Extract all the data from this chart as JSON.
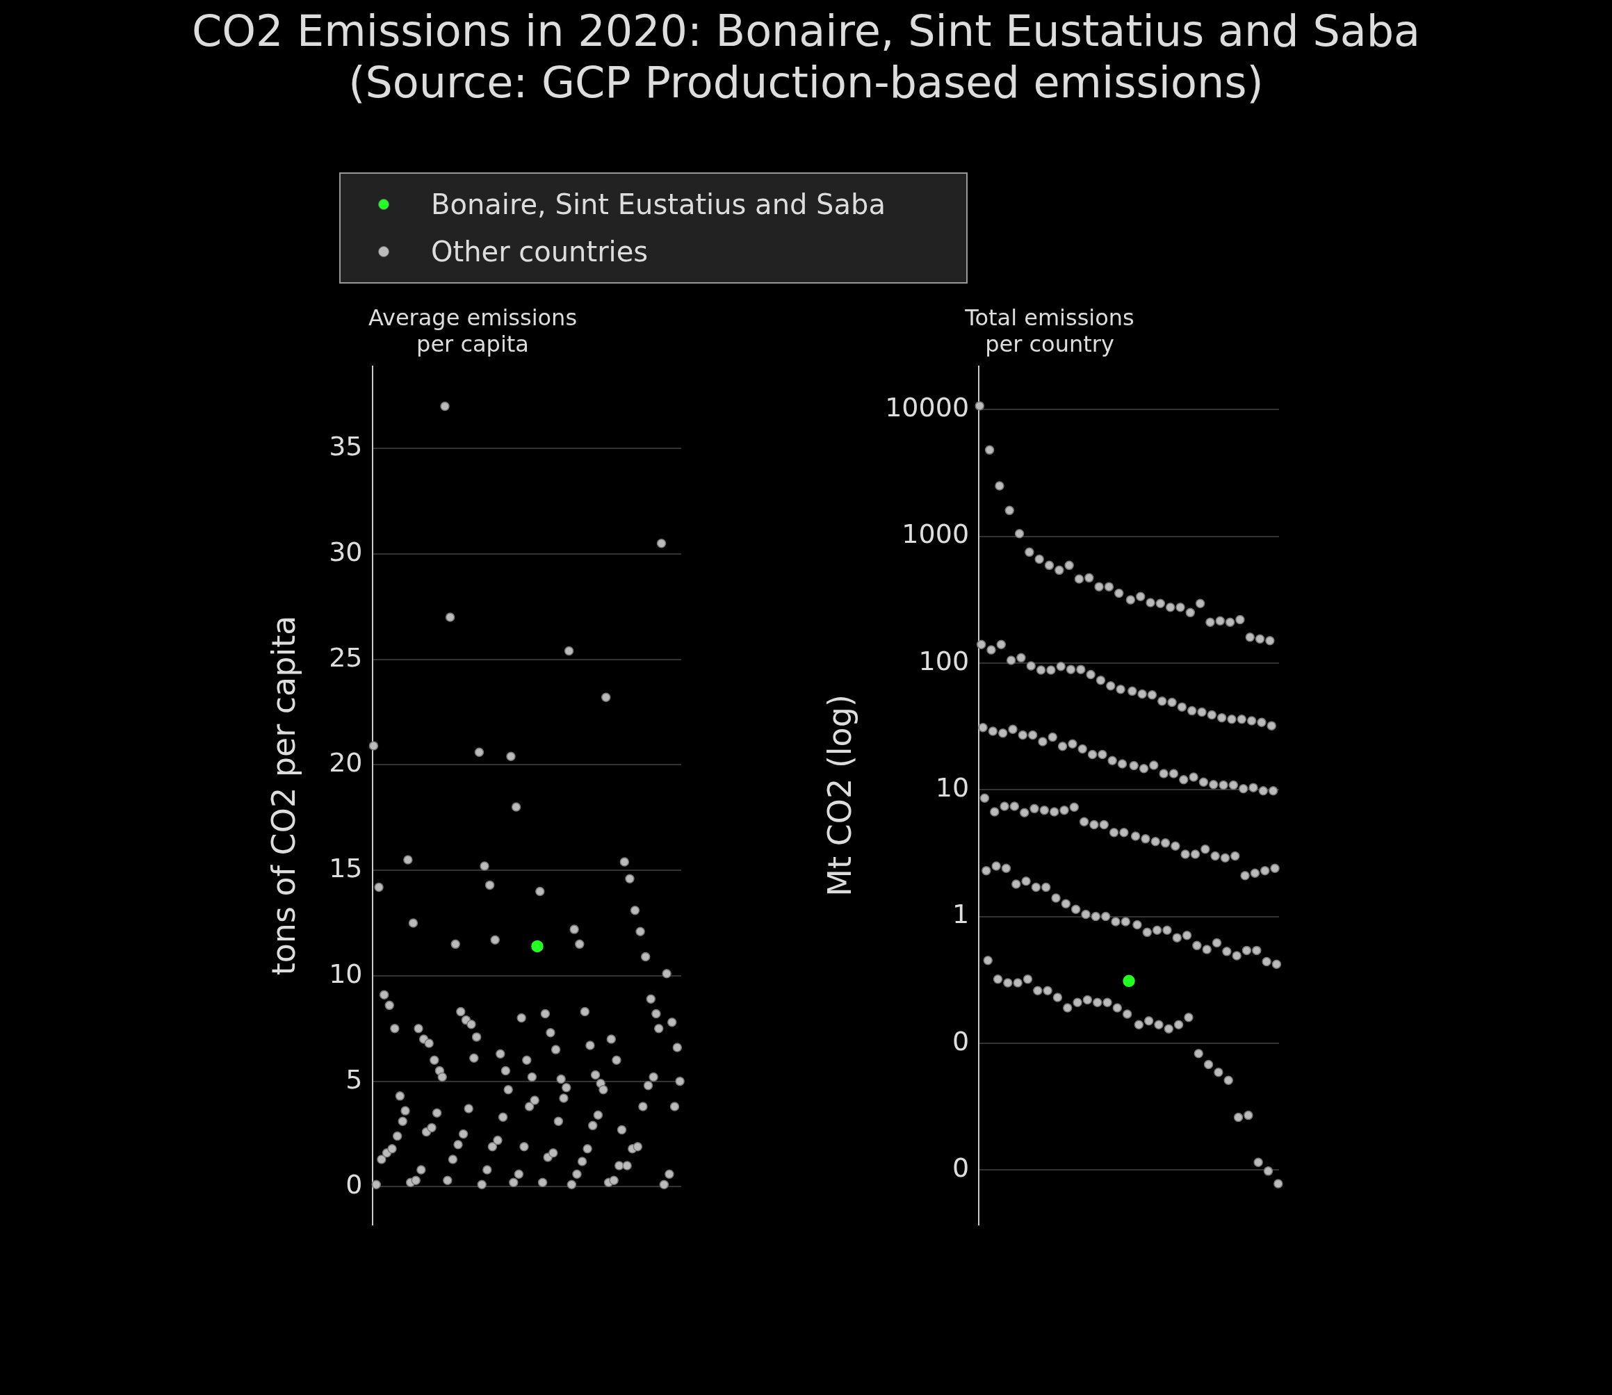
{
  "chart_data": [
    {
      "type": "scatter",
      "title": "CO2 Emissions in 2020: Bonaire, Sint Eustatius and Saba\n(Source: GCP Production-based emissions)",
      "subtitle": "Average emissions\nper capita",
      "ylabel": "tons of CO2 per capita",
      "legend": "top",
      "grid": "y",
      "tick_labels": "y",
      "marker": "circle",
      "ylim": [
        -1.8,
        38.9
      ],
      "yticks": [
        0,
        5,
        10,
        15,
        20,
        25,
        30,
        35
      ],
      "categories": [
        null,
        null,
        null,
        null,
        null,
        null,
        null,
        null,
        null,
        null,
        null,
        null,
        null,
        null,
        null,
        null,
        null,
        null,
        null,
        null,
        null,
        null,
        null,
        null,
        null,
        null,
        null,
        null,
        null,
        null,
        null,
        null,
        null,
        null,
        null,
        null,
        null,
        null,
        null,
        null,
        null,
        null,
        null,
        null,
        null,
        null,
        null,
        null,
        null,
        null,
        null,
        null,
        null,
        null,
        null,
        null,
        null,
        null,
        null,
        null,
        null,
        null,
        null,
        null,
        null,
        null,
        null,
        null,
        null,
        null,
        null,
        null,
        null,
        null,
        null,
        null,
        null,
        null,
        null,
        null,
        null,
        null,
        null,
        null,
        null,
        null,
        null,
        null,
        null,
        null,
        null,
        null,
        null,
        null,
        null,
        null,
        null,
        null,
        null,
        null,
        null,
        null,
        null,
        null,
        null,
        null,
        null,
        null,
        null,
        null,
        null,
        null,
        null,
        null,
        null,
        null,
        null
      ],
      "series": [
        {
          "name": "Bonaire, Sint Eustatius and Saba",
          "color": "#22ff22",
          "values": [
            null,
            null,
            null,
            null,
            null,
            null,
            null,
            null,
            null,
            null,
            null,
            null,
            null,
            null,
            null,
            null,
            null,
            null,
            null,
            null,
            null,
            null,
            null,
            null,
            null,
            null,
            null,
            null,
            null,
            null,
            null,
            null,
            null,
            null,
            null,
            null,
            null,
            null,
            null,
            null,
            null,
            null,
            null,
            null,
            null,
            null,
            null,
            null,
            null,
            null,
            null,
            null,
            null,
            null,
            null,
            null,
            null,
            null,
            null,
            null,
            null,
            null,
            11.4,
            null,
            null,
            null,
            null,
            null,
            null,
            null,
            null,
            null,
            null,
            null,
            null,
            null,
            null,
            null,
            null,
            null,
            null,
            null,
            null,
            null,
            null,
            null,
            null,
            null,
            null,
            null,
            null,
            null,
            null,
            null,
            null,
            null,
            null,
            null,
            null,
            null,
            null,
            null,
            null,
            null,
            null,
            null,
            null,
            null,
            null,
            null,
            null,
            null,
            null,
            null,
            null,
            null,
            null
          ]
        },
        {
          "name": "Other countries",
          "color": "#bbbbbb",
          "values": [
            20.9,
            0.1,
            14.2,
            1.3,
            9.1,
            1.6,
            8.6,
            1.8,
            7.5,
            2.4,
            4.3,
            3.1,
            3.6,
            15.5,
            0.2,
            12.5,
            0.3,
            7.5,
            0.8,
            7.0,
            2.6,
            6.8,
            2.8,
            6.0,
            3.5,
            5.5,
            5.2,
            37.0,
            0.3,
            27.0,
            1.3,
            11.5,
            2.0,
            8.3,
            2.5,
            7.9,
            3.7,
            7.7,
            6.1,
            7.1,
            20.6,
            0.1,
            15.2,
            0.8,
            14.3,
            1.9,
            11.7,
            2.2,
            6.3,
            3.3,
            5.5,
            4.6,
            20.4,
            0.2,
            18.0,
            0.6,
            8.0,
            1.9,
            6.0,
            3.8,
            5.2,
            4.1,
            null,
            14.0,
            0.2,
            8.2,
            1.4,
            7.3,
            1.6,
            6.5,
            3.1,
            5.1,
            4.2,
            4.7,
            25.4,
            0.1,
            12.2,
            0.6,
            11.5,
            1.2,
            8.3,
            1.8,
            6.7,
            2.9,
            5.3,
            3.4,
            4.9,
            4.6,
            23.2,
            0.2,
            7.0,
            0.3,
            6.0,
            1.0,
            2.7,
            15.4,
            1.0,
            14.6,
            1.8,
            13.1,
            1.9,
            12.1,
            3.8,
            10.9,
            4.8,
            8.9,
            5.2,
            8.2,
            7.5,
            30.5,
            0.1,
            10.1,
            0.6,
            7.8,
            3.8,
            6.6,
            5.0
          ]
        }
      ]
    },
    {
      "type": "scatter",
      "subtitle": "Total emissions\nper country",
      "ylabel": "Mt CO2 (log)",
      "log": "y",
      "grid": "y",
      "tick_labels": "y",
      "marker": "circle",
      "ylim": [
        0.0037,
        22000
      ],
      "yticks": [
        {
          "value": 0.01,
          "label": "0"
        },
        {
          "value": 0.1,
          "label": "0"
        },
        1,
        10,
        100,
        1000,
        10000
      ],
      "categories": [
        null,
        null,
        null,
        null,
        null,
        null,
        null,
        null,
        null,
        null,
        null,
        null,
        null,
        null,
        null,
        null,
        null,
        null,
        null,
        null,
        null,
        null,
        null,
        null,
        null,
        null,
        null,
        null,
        null,
        null,
        null,
        null,
        null,
        null,
        null,
        null,
        null,
        null,
        null,
        null,
        null,
        null,
        null,
        null,
        null,
        null,
        null,
        null,
        null,
        null,
        null,
        null,
        null,
        null,
        null,
        null,
        null,
        null,
        null,
        null,
        null,
        null,
        null,
        null,
        null,
        null,
        null,
        null,
        null,
        null,
        null,
        null,
        null,
        null,
        null,
        null,
        null,
        null,
        null,
        null,
        null,
        null,
        null,
        null,
        null,
        null,
        null,
        null,
        null,
        null,
        null,
        null,
        null,
        null,
        null,
        null,
        null,
        null,
        null,
        null,
        null,
        null,
        null,
        null,
        null,
        null,
        null,
        null,
        null,
        null,
        null,
        null,
        null,
        null,
        null,
        null,
        null,
        null,
        null,
        null,
        null,
        null,
        null,
        null,
        null,
        null,
        null,
        null,
        null,
        null,
        null,
        null,
        null,
        null,
        null,
        null,
        null,
        null,
        null,
        null,
        null,
        null,
        null,
        null,
        null,
        null,
        null,
        null,
        null,
        null,
        null,
        null,
        null,
        null,
        null,
        null,
        null,
        null,
        null,
        null,
        null,
        null,
        null,
        null,
        null,
        null,
        null,
        null,
        null,
        null,
        null,
        null,
        null,
        null,
        null,
        null,
        null,
        null,
        null,
        null,
        null
      ],
      "series": [
        {
          "color": "#22ff22",
          "values": [
            null,
            null,
            null,
            null,
            null,
            null,
            null,
            null,
            null,
            null,
            null,
            null,
            null,
            null,
            null,
            null,
            null,
            null,
            null,
            null,
            null,
            null,
            null,
            null,
            null,
            null,
            null,
            null,
            null,
            null,
            null,
            null,
            null,
            null,
            null,
            null,
            null,
            null,
            null,
            null,
            null,
            null,
            null,
            null,
            null,
            null,
            null,
            null,
            null,
            null,
            null,
            null,
            null,
            null,
            null,
            null,
            null,
            null,
            null,
            null,
            null,
            null,
            null,
            null,
            null,
            null,
            null,
            null,
            null,
            null,
            null,
            null,
            null,
            null,
            null,
            null,
            null,
            null,
            null,
            null,
            null,
            null,
            null,
            null,
            null,
            null,
            null,
            null,
            null,
            null,
            0.31,
            null,
            null,
            null,
            null,
            null,
            null,
            null,
            null,
            null,
            null,
            null,
            null,
            null,
            null,
            null,
            null,
            null,
            null,
            null,
            null,
            null,
            null,
            null,
            null,
            null,
            null,
            null,
            null,
            null,
            null,
            null,
            null,
            null,
            null,
            null,
            null,
            null,
            null,
            null,
            null,
            null,
            null,
            null,
            null,
            null,
            null,
            null,
            null,
            null,
            null,
            null,
            null,
            null,
            null,
            null,
            null,
            null,
            null,
            null,
            null,
            null,
            null,
            null,
            null,
            null,
            null,
            null,
            null,
            null,
            null,
            null,
            null,
            null,
            null,
            null,
            null,
            null,
            null,
            null,
            null,
            null,
            null,
            null,
            null,
            null,
            null,
            null,
            null,
            null,
            null
          ]
        },
        {
          "color": "#bbbbbb",
          "values": [
            10700,
            140,
            31,
            8.6,
            2.3,
            0.45,
            4800,
            127,
            29,
            6.7,
            2.5,
            0.32,
            2500,
            140,
            28,
            7.4,
            2.4,
            0.3,
            1600,
            105,
            30,
            7.4,
            1.8,
            0.3,
            1050,
            110,
            27,
            6.6,
            1.9,
            0.32,
            750,
            95,
            27,
            7.1,
            1.7,
            0.26,
            660,
            88,
            24,
            6.9,
            1.7,
            0.26,
            590,
            88,
            26,
            6.7,
            1.4,
            0.23,
            540,
            94,
            22,
            6.9,
            1.26,
            0.19,
            590,
            89,
            23,
            7.3,
            1.14,
            0.21,
            460,
            89,
            21,
            5.6,
            1.04,
            0.22,
            470,
            81,
            19,
            5.3,
            1.0,
            0.21,
            400,
            73,
            19,
            5.3,
            1.0,
            0.21,
            400,
            66,
            17,
            4.6,
            0.91,
            0.19,
            355,
            62,
            16,
            4.6,
            0.91,
            0.17,
            null,
            315,
            60,
            15.5,
            4.3,
            0.86,
            0.14,
            335,
            57,
            14.7,
            4.1,
            0.75,
            0.15,
            300,
            56,
            15.6,
            3.9,
            0.78,
            0.14,
            295,
            50,
            13.4,
            3.8,
            0.78,
            0.13,
            275,
            49,
            13.4,
            3.6,
            0.68,
            0.14,
            275,
            45,
            12,
            3.1,
            0.71,
            0.16,
            250,
            42,
            12.6,
            3.1,
            0.59,
            0.083,
            295,
            41,
            11.5,
            3.4,
            0.55,
            0.068,
            210,
            39,
            11,
            3.0,
            0.62,
            0.059,
            215,
            37,
            10.9,
            2.9,
            0.53,
            0.051,
            210,
            36,
            10.9,
            3.0,
            0.49,
            0.026,
            220,
            36,
            10.2,
            2.1,
            0.54,
            0.027,
            160,
            35,
            10.4,
            2.2,
            0.54,
            0.0115,
            155,
            34,
            9.8,
            2.3,
            0.44,
            0.0098,
            150,
            32,
            9.8,
            2.4,
            0.42,
            0.0078
          ]
        }
      ]
    }
  ]
}
